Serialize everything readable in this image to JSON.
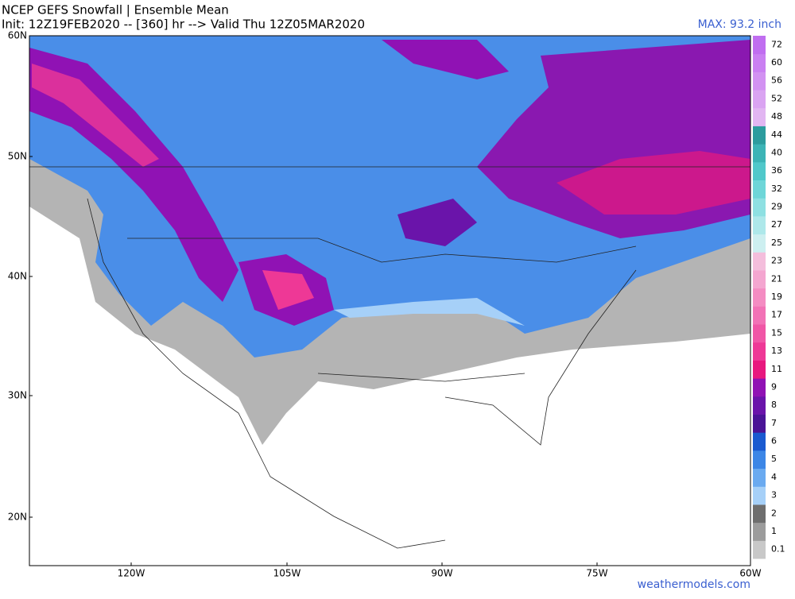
{
  "header": {
    "title": "NCEP GEFS Snowfall | Ensemble Mean",
    "subtitle": "Init: 12Z19FEB2020 -- [360] hr --> Valid Thu 12Z05MAR2020",
    "max": "MAX: 93.2 inch"
  },
  "latitudes": [
    "60N",
    "50N",
    "40N",
    "30N",
    "20N"
  ],
  "longitudes": [
    "120W",
    "105W",
    "90W",
    "75W",
    "60W"
  ],
  "colorbar": [
    {
      "label": 0.1,
      "color": "#c8c8c8"
    },
    {
      "label": 1,
      "color": "#9c9c9c"
    },
    {
      "label": 2,
      "color": "#6e6e6e"
    },
    {
      "label": 3,
      "color": "#a6d0f8"
    },
    {
      "label": 4,
      "color": "#6aaaf0"
    },
    {
      "label": 5,
      "color": "#3c86e6"
    },
    {
      "label": 6,
      "color": "#1a5ad0"
    },
    {
      "label": 7,
      "color": "#4a1496"
    },
    {
      "label": 8,
      "color": "#6a14aa"
    },
    {
      "label": 9,
      "color": "#9012b4"
    },
    {
      "label": 11,
      "color": "#e8187e"
    },
    {
      "label": 13,
      "color": "#ee3896"
    },
    {
      "label": 15,
      "color": "#f056a6"
    },
    {
      "label": 17,
      "color": "#f272b6"
    },
    {
      "label": 19,
      "color": "#f48cc2"
    },
    {
      "label": 21,
      "color": "#f4a6d0"
    },
    {
      "label": 23,
      "color": "#f4bedc"
    },
    {
      "label": 25,
      "color": "#cdeff0"
    },
    {
      "label": 27,
      "color": "#aee8ea"
    },
    {
      "label": 29,
      "color": "#8ee0e2"
    },
    {
      "label": 32,
      "color": "#6ed6d8"
    },
    {
      "label": 36,
      "color": "#50c8ca"
    },
    {
      "label": 40,
      "color": "#3cb4b6"
    },
    {
      "label": 44,
      "color": "#2c9c9e"
    },
    {
      "label": 48,
      "color": "#e2b6f2"
    },
    {
      "label": 52,
      "color": "#daa4f2"
    },
    {
      "label": 56,
      "color": "#d292f2"
    },
    {
      "label": 60,
      "color": "#ca80f2"
    },
    {
      "label": 72,
      "color": "#c06ef0"
    }
  ],
  "credit": "weathermodels.com"
}
